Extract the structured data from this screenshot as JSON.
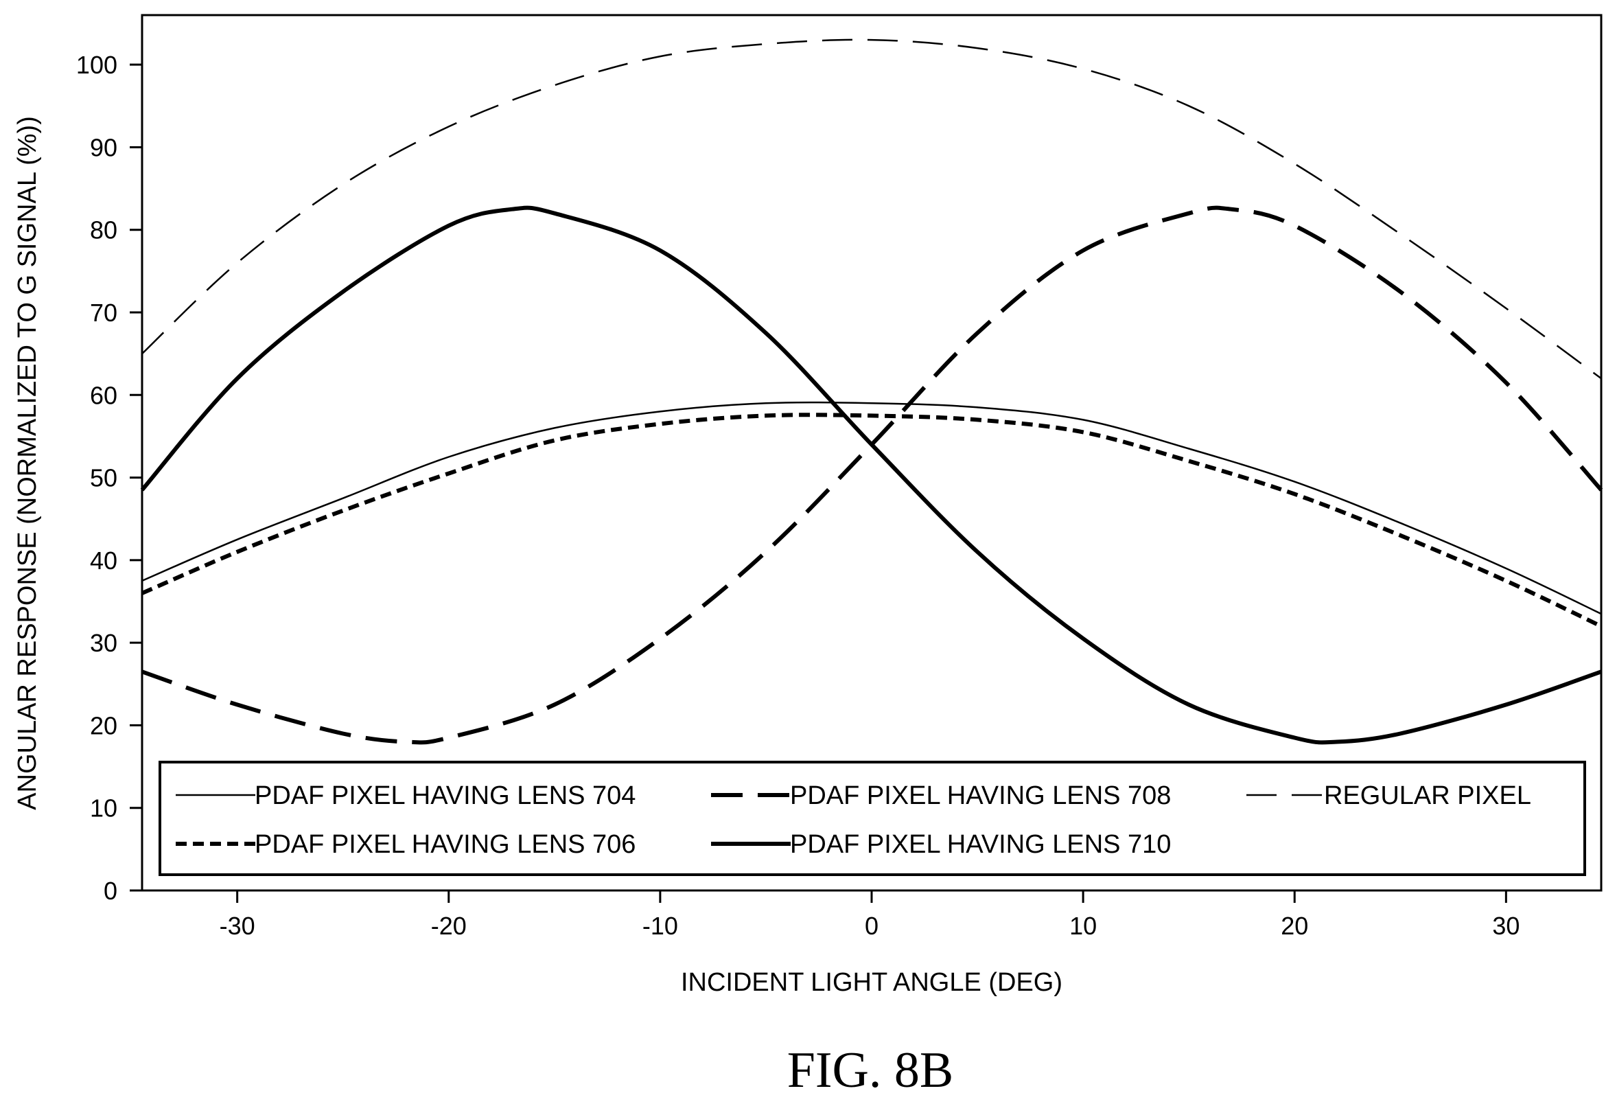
{
  "figure": {
    "caption": "FIG. 8B"
  },
  "chart_data": {
    "type": "line",
    "title": "",
    "xlabel": "INCIDENT LIGHT ANGLE (DEG)",
    "ylabel": "ANGULAR RESPONSE (NORMALIZED TO G SIGNAL (%))",
    "xlim": [
      -34.5,
      34.5
    ],
    "ylim": [
      0,
      106
    ],
    "xticks": [
      -30,
      -20,
      -10,
      0,
      10,
      20,
      30
    ],
    "xtick_labels": [
      "-30",
      "-20",
      "-10",
      "0",
      "10",
      "20",
      "30"
    ],
    "yticks": [
      0,
      10,
      20,
      30,
      40,
      50,
      60,
      70,
      80,
      90,
      100
    ],
    "ytick_labels": [
      "0",
      "10",
      "20",
      "30",
      "40",
      "50",
      "60",
      "70",
      "80",
      "90",
      "100"
    ],
    "grid": false,
    "legend_position": "bottom",
    "series": [
      {
        "name": "PDAF PIXEL HAVING LENS 704",
        "style": "thin-solid",
        "x": [
          -34.5,
          -30,
          -25,
          -20,
          -15,
          -10,
          -5,
          0,
          5,
          10,
          15,
          20,
          25,
          30,
          34.5
        ],
        "y": [
          37.5,
          42.5,
          47.5,
          52.5,
          56,
          58,
          59,
          59,
          58.5,
          57,
          53.5,
          49.5,
          44.5,
          39,
          33.5
        ]
      },
      {
        "name": "PDAF PIXEL HAVING LENS 706",
        "style": "short-dash",
        "x": [
          -34.5,
          -30,
          -25,
          -20,
          -15,
          -10,
          -5,
          0,
          5,
          10,
          15,
          20,
          25,
          30,
          34.5
        ],
        "y": [
          36,
          41,
          46,
          50.5,
          54.5,
          56.5,
          57.5,
          57.5,
          57,
          55.5,
          52,
          48,
          43,
          37.5,
          32
        ]
      },
      {
        "name": "PDAF PIXEL HAVING LENS 708",
        "style": "long-dash-thick",
        "x": [
          -34.5,
          -30,
          -25,
          -22,
          -20,
          -15,
          -10,
          -5,
          0,
          5,
          10,
          15,
          17,
          20,
          25,
          30,
          34.5
        ],
        "y": [
          26.5,
          22.5,
          19,
          18,
          18.5,
          22.5,
          30.5,
          41,
          54,
          67.5,
          77.5,
          82,
          82.5,
          80.5,
          72.5,
          61.5,
          48.5
        ]
      },
      {
        "name": "PDAF PIXEL HAVING LENS 710",
        "style": "thick-solid",
        "x": [
          -34.5,
          -30,
          -25,
          -20,
          -17,
          -15,
          -10,
          -5,
          0,
          5,
          10,
          15,
          20,
          22,
          25,
          30,
          34.5
        ],
        "y": [
          48.5,
          62,
          72.5,
          80.5,
          82.5,
          82,
          77.5,
          67.5,
          54,
          41,
          30.5,
          22.5,
          18.5,
          18,
          19,
          22.5,
          26.5
        ]
      },
      {
        "name": "REGULAR PIXEL",
        "style": "thin-long-dash",
        "x": [
          -34.5,
          -30,
          -25,
          -20,
          -15,
          -10,
          -5,
          0,
          5,
          10,
          15,
          20,
          25,
          30,
          34.5
        ],
        "y": [
          65,
          76,
          85.5,
          92.5,
          97.5,
          101,
          102.5,
          103,
          102,
          99.5,
          95,
          88,
          79.5,
          70.5,
          62
        ]
      }
    ]
  }
}
